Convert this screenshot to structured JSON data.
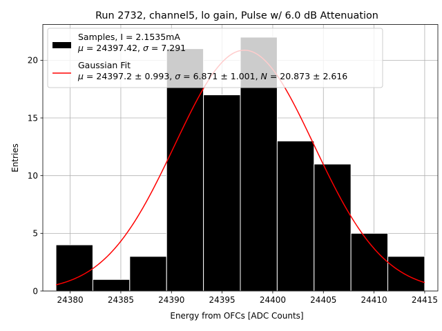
{
  "chart_data": {
    "type": "bar",
    "title": "Run 2732, channel5, lo gain, Pulse w/ 6.0 dB Attenuation",
    "xlabel": "Energy from OFCs [ADC Counts]",
    "ylabel": "Entries",
    "xlim": [
      24377.3,
      24416.3
    ],
    "ylim": [
      0,
      23.1
    ],
    "grid": true,
    "legend_position": "top-left",
    "x_ticks": [
      24380,
      24385,
      24390,
      24395,
      24400,
      24405,
      24410,
      24415
    ],
    "y_ticks": [
      0,
      5,
      10,
      15,
      20
    ],
    "histogram": {
      "bin_edges": [
        24378.6,
        24382.24,
        24385.88,
        24389.52,
        24393.16,
        24396.8,
        24400.44,
        24404.08,
        24407.72,
        24411.36,
        24415.0
      ],
      "counts": [
        4,
        1,
        3,
        21,
        17,
        22,
        13,
        11,
        5,
        3
      ],
      "color": "#000000",
      "edge_color": "#ffffff"
    },
    "fit": {
      "mu": 24397.2,
      "sigma": 6.871,
      "amplitude": 20.873,
      "x_range": [
        24378.6,
        24415.0
      ],
      "color": "#ff0000"
    },
    "legend": [
      {
        "kind": "patch",
        "color": "#000000",
        "line1": "Samples, I = 2.1535mA",
        "line2": [
          {
            "t": "μ",
            "i": true
          },
          {
            "t": " = 24397.42, "
          },
          {
            "t": "σ",
            "i": true
          },
          {
            "t": " = 7.291"
          }
        ]
      },
      {
        "kind": "line",
        "color": "#ff0000",
        "line1": "Gaussian Fit",
        "line2": [
          {
            "t": "μ",
            "i": true
          },
          {
            "t": " = 24397.2 ± 0.993, "
          },
          {
            "t": "σ",
            "i": true
          },
          {
            "t": " = 6.871 ± 1.001, "
          },
          {
            "t": "N",
            "i": true
          },
          {
            "t": " = 20.873 ± 2.616"
          }
        ]
      }
    ]
  }
}
